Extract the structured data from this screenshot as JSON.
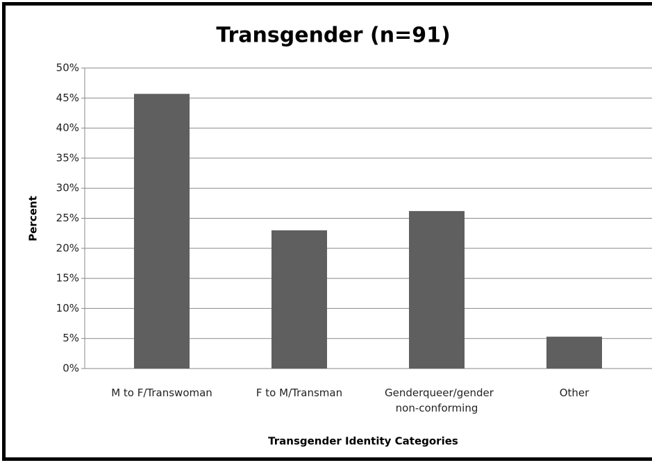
{
  "chart_data": {
    "type": "bar",
    "title": "Transgender (n=91)",
    "x_label": "Transgender Identity Categories",
    "y_label": "Percent",
    "categories": [
      "M to F/Transwoman",
      "F to M/Transman",
      "Genderqueer/gender non-conforming",
      "Other"
    ],
    "values": [
      45.7,
      23.0,
      26.2,
      5.3
    ],
    "color": "#5f5f5f",
    "ylim": [
      0,
      50
    ],
    "yticks": [
      {
        "value": 0,
        "label": "0%"
      },
      {
        "value": 5,
        "label": "5%"
      },
      {
        "value": 10,
        "label": "10%"
      },
      {
        "value": 15,
        "label": "15%"
      },
      {
        "value": 20,
        "label": "20%"
      },
      {
        "value": 25,
        "label": "25%"
      },
      {
        "value": 30,
        "label": "30%"
      },
      {
        "value": 35,
        "label": "35%"
      },
      {
        "value": 40,
        "label": "40%"
      },
      {
        "value": 45,
        "label": "45%"
      },
      {
        "value": 50,
        "label": "50%"
      }
    ],
    "grid": true
  }
}
